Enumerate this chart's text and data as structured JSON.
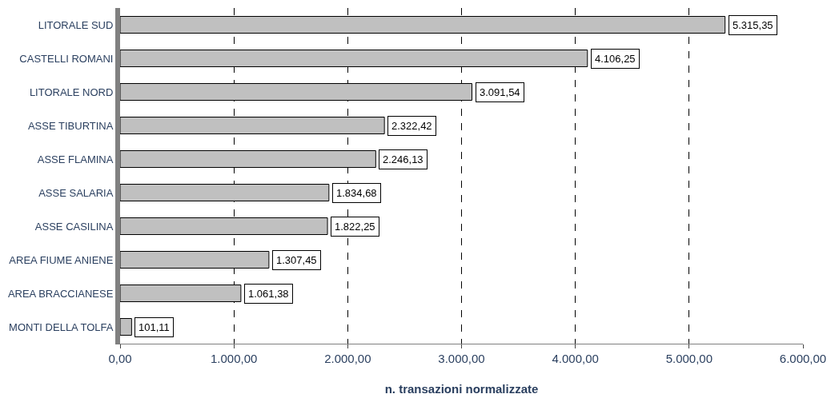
{
  "chart_data": {
    "type": "bar",
    "orientation": "horizontal",
    "xlabel": "n. transazioni normalizzate",
    "categories": [
      "LITORALE SUD",
      "CASTELLI ROMANI",
      "LITORALE NORD",
      "ASSE TIBURTINA",
      "ASSE FLAMINA",
      "ASSE SALARIA",
      "ASSE CASILINA",
      "AREA FIUME ANIENE",
      "AREA BRACCIANESE",
      "MONTI DELLA TOLFA"
    ],
    "values": [
      5315.35,
      4106.25,
      3091.54,
      2322.42,
      2246.13,
      1834.68,
      1822.25,
      1307.45,
      1061.38,
      101.11
    ],
    "value_labels": [
      "5.315,35",
      "4.106,25",
      "3.091,54",
      "2.322,42",
      "2.246,13",
      "1.834,68",
      "1.822,25",
      "1.307,45",
      "1.061,38",
      "101,11"
    ],
    "color": "#c0c0c0",
    "grid": "x",
    "legend": false,
    "xlim": [
      0,
      6000
    ],
    "xticks": [
      {
        "value": 0,
        "label": "0,00"
      },
      {
        "value": 1000,
        "label": "1.000,00"
      },
      {
        "value": 2000,
        "label": "2.000,00"
      },
      {
        "value": 3000,
        "label": "3.000,00"
      },
      {
        "value": 4000,
        "label": "4.000,00"
      },
      {
        "value": 5000,
        "label": "5.000,00"
      },
      {
        "value": 6000,
        "label": "6.000,00"
      }
    ]
  }
}
